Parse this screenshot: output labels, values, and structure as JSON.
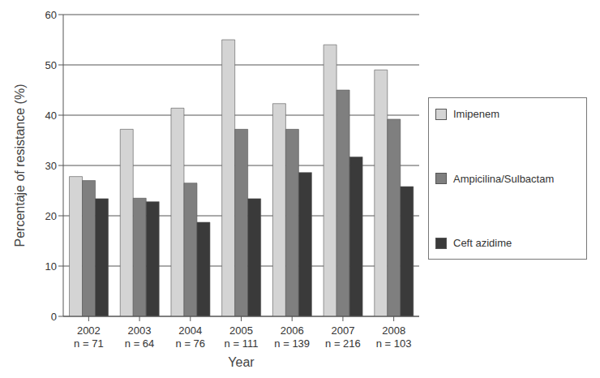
{
  "chart_data": {
    "type": "bar",
    "x_label": "Year",
    "y_label": "Percentaje of resistance (%)",
    "categories": [
      "2002\nn = 71",
      "2003\nn = 64",
      "2004\nn = 76",
      "2005\nn = 111",
      "2006\nn = 139",
      "2007\nn = 216",
      "2008\nn = 103"
    ],
    "series": [
      {
        "name": "Imipenem",
        "color": "#d4d4d4",
        "values": [
          27.8,
          37.2,
          41.4,
          55,
          42.3,
          54,
          49
        ]
      },
      {
        "name": "Ampicilina/Sulbactam",
        "color": "#7f7f7f",
        "values": [
          27,
          23.5,
          26.5,
          37.2,
          37.2,
          45,
          39.2
        ]
      },
      {
        "name": "Ceft azidime",
        "color": "#3a3a3a",
        "values": [
          23.4,
          22.8,
          18.7,
          23.4,
          28.6,
          31.7,
          25.8
        ]
      }
    ],
    "ylim": [
      0,
      60
    ],
    "yticks": [
      0,
      10,
      20,
      30,
      40,
      50,
      60
    ],
    "grid": true,
    "legend": "right"
  }
}
